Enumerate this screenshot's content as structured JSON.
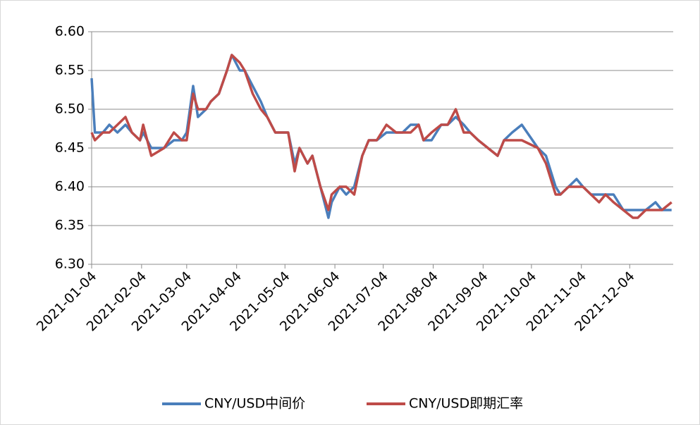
{
  "chart_data": {
    "type": "line",
    "x": [
      "2021-01-04",
      "2021-01-06",
      "2021-01-11",
      "2021-01-15",
      "2021-01-20",
      "2021-01-25",
      "2021-01-29",
      "2021-02-03",
      "2021-02-05",
      "2021-02-10",
      "2021-02-18",
      "2021-02-24",
      "2021-03-01",
      "2021-03-04",
      "2021-03-08",
      "2021-03-11",
      "2021-03-16",
      "2021-03-19",
      "2021-03-24",
      "2021-03-29",
      "2021-04-01",
      "2021-04-06",
      "2021-04-09",
      "2021-04-14",
      "2021-04-19",
      "2021-04-23",
      "2021-04-28",
      "2021-05-06",
      "2021-05-10",
      "2021-05-13",
      "2021-05-18",
      "2021-05-21",
      "2021-05-26",
      "2021-05-31",
      "2021-06-02",
      "2021-06-07",
      "2021-06-11",
      "2021-06-16",
      "2021-06-21",
      "2021-06-25",
      "2021-06-30",
      "2021-07-06",
      "2021-07-12",
      "2021-07-16",
      "2021-07-21",
      "2021-07-26",
      "2021-07-29",
      "2021-08-03",
      "2021-08-09",
      "2021-08-13",
      "2021-08-18",
      "2021-08-23",
      "2021-08-27",
      "2021-09-01",
      "2021-09-07",
      "2021-09-13",
      "2021-09-17",
      "2021-09-22",
      "2021-09-28",
      "2021-10-08",
      "2021-10-13",
      "2021-10-19",
      "2021-10-22",
      "2021-10-27",
      "2021-11-01",
      "2021-11-05",
      "2021-11-10",
      "2021-11-15",
      "2021-11-19",
      "2021-11-24",
      "2021-11-30",
      "2021-12-06",
      "2021-12-09",
      "2021-12-14",
      "2021-12-20",
      "2021-12-24",
      "2021-12-30"
    ],
    "series": [
      {
        "name": "CNY/USD中间价",
        "color": "#4a7ebb",
        "values": [
          6.54,
          6.47,
          6.47,
          6.48,
          6.47,
          6.48,
          6.47,
          6.46,
          6.47,
          6.45,
          6.45,
          6.46,
          6.46,
          6.47,
          6.53,
          6.49,
          6.5,
          6.51,
          6.52,
          6.55,
          6.57,
          6.55,
          6.55,
          6.53,
          6.51,
          6.49,
          6.47,
          6.47,
          6.43,
          6.45,
          6.43,
          6.44,
          6.4,
          6.36,
          6.38,
          6.4,
          6.39,
          6.4,
          6.44,
          6.46,
          6.46,
          6.47,
          6.47,
          6.47,
          6.48,
          6.48,
          6.46,
          6.46,
          6.48,
          6.48,
          6.49,
          6.48,
          6.47,
          6.46,
          6.45,
          6.44,
          6.46,
          6.47,
          6.48,
          6.45,
          6.44,
          6.4,
          6.39,
          6.4,
          6.41,
          6.4,
          6.39,
          6.39,
          6.39,
          6.39,
          6.37,
          6.37,
          6.37,
          6.37,
          6.38,
          6.37,
          6.37
        ]
      },
      {
        "name": "CNY/USD即期汇率",
        "color": "#be4b48",
        "values": [
          6.47,
          6.46,
          6.47,
          6.47,
          6.48,
          6.49,
          6.47,
          6.46,
          6.48,
          6.44,
          6.45,
          6.47,
          6.46,
          6.46,
          6.52,
          6.5,
          6.5,
          6.51,
          6.52,
          6.55,
          6.57,
          6.56,
          6.55,
          6.52,
          6.5,
          6.49,
          6.47,
          6.47,
          6.42,
          6.45,
          6.43,
          6.44,
          6.4,
          6.37,
          6.39,
          6.4,
          6.4,
          6.39,
          6.44,
          6.46,
          6.46,
          6.48,
          6.47,
          6.47,
          6.47,
          6.48,
          6.46,
          6.47,
          6.48,
          6.48,
          6.5,
          6.47,
          6.47,
          6.46,
          6.45,
          6.44,
          6.46,
          6.46,
          6.46,
          6.45,
          6.43,
          6.39,
          6.39,
          6.4,
          6.4,
          6.4,
          6.39,
          6.38,
          6.39,
          6.38,
          6.37,
          6.36,
          6.36,
          6.37,
          6.37,
          6.37,
          6.38
        ]
      }
    ],
    "xlim": [
      "2021-01-04",
      "2021-12-31"
    ],
    "xticks": [
      "2021-01-04",
      "2021-02-04",
      "2021-03-04",
      "2021-04-04",
      "2021-05-04",
      "2021-06-04",
      "2021-07-04",
      "2021-08-04",
      "2021-09-04",
      "2021-10-04",
      "2021-11-04",
      "2021-12-04"
    ],
    "ylim": [
      6.3,
      6.6
    ],
    "yticks": [
      {
        "value": 6.3,
        "label": "6.30"
      },
      6.35,
      {
        "value": 6.4,
        "label": "6.40"
      },
      6.45,
      {
        "value": 6.5,
        "label": "6.50"
      },
      6.55,
      {
        "value": 6.6,
        "label": "6.60"
      }
    ],
    "grid": true,
    "legend": "bottom"
  }
}
